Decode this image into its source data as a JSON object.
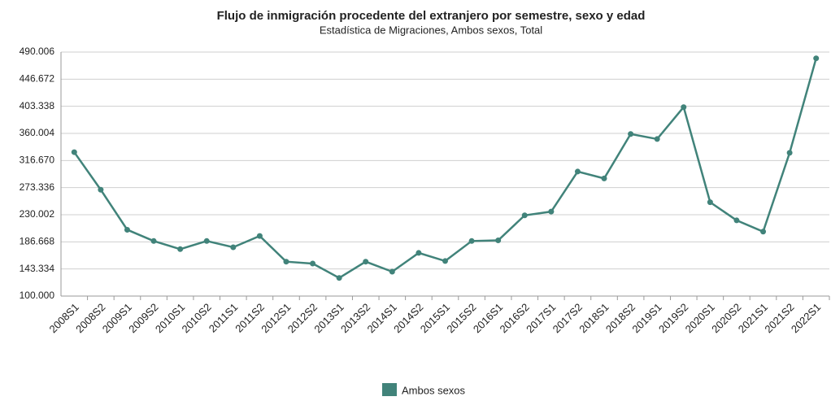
{
  "chart_data": {
    "type": "line",
    "title": "Flujo de inmigración procedente del extranjero por semestre, sexo y edad",
    "subtitle": "Estadística de Migraciones, Ambos sexos, Total",
    "categories": [
      "2008S1",
      "2008S2",
      "2009S1",
      "2009S2",
      "2010S1",
      "2010S2",
      "2011S1",
      "2011S2",
      "2012S1",
      "2012S2",
      "2013S1",
      "2013S2",
      "2014S1",
      "2014S2",
      "2015S1",
      "2015S2",
      "2016S1",
      "2016S2",
      "2017S1",
      "2017S2",
      "2018S1",
      "2018S2",
      "2019S1",
      "2019S2",
      "2020S1",
      "2020S2",
      "2021S1",
      "2021S2",
      "2022S1"
    ],
    "series": [
      {
        "name": "Ambos sexos",
        "color": "#41837a",
        "values": [
          330000,
          270000,
          206000,
          188000,
          175000,
          188000,
          178000,
          196000,
          155000,
          152000,
          129000,
          155000,
          139000,
          169000,
          156000,
          188000,
          189000,
          229000,
          235000,
          299000,
          288000,
          359000,
          351000,
          402000,
          250000,
          221000,
          203000,
          329000,
          480000
        ]
      }
    ],
    "ylim": [
      100000,
      490006
    ],
    "yticks": [
      {
        "value": 100000,
        "label": "100.000"
      },
      {
        "value": 143334,
        "label": "143.334"
      },
      {
        "value": 186668,
        "label": "186.668"
      },
      {
        "value": 230002,
        "label": "230.002"
      },
      {
        "value": 273336,
        "label": "273.336"
      },
      {
        "value": 316670,
        "label": "316.670"
      },
      {
        "value": 360004,
        "label": "360.004"
      },
      {
        "value": 403338,
        "label": "403.338"
      },
      {
        "value": 446672,
        "label": "446.672"
      },
      {
        "value": 490006,
        "label": "490.006"
      }
    ],
    "grid": true,
    "legend": "bottom"
  }
}
